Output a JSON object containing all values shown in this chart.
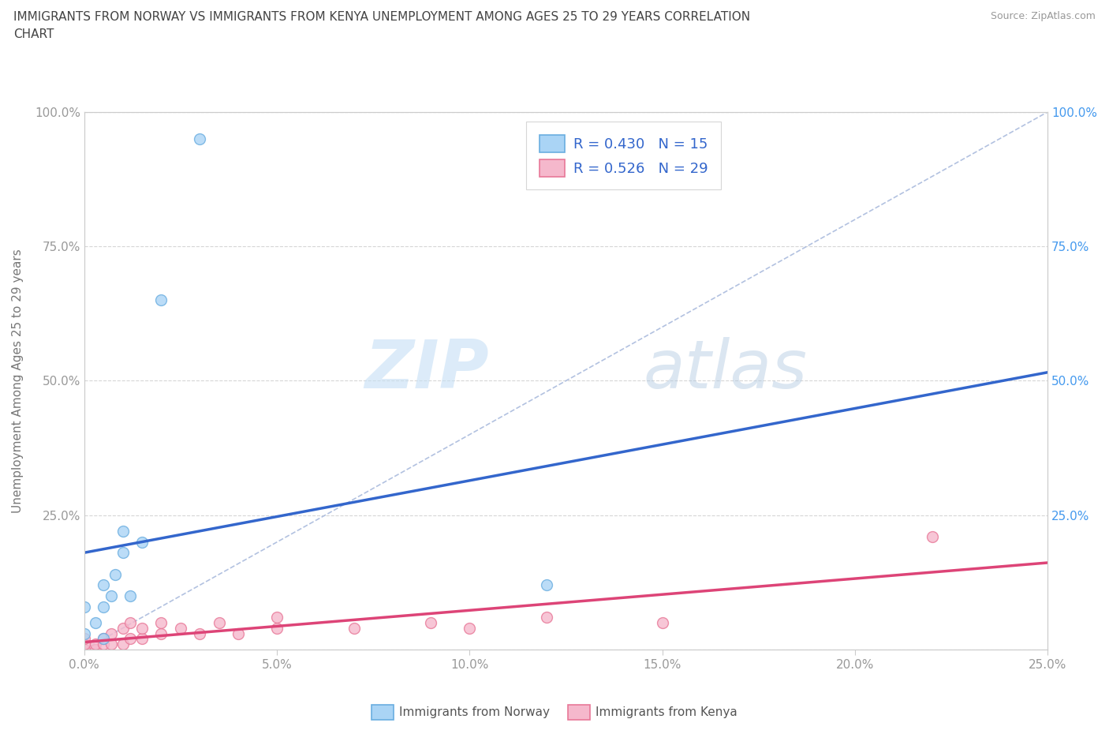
{
  "title": "IMMIGRANTS FROM NORWAY VS IMMIGRANTS FROM KENYA UNEMPLOYMENT AMONG AGES 25 TO 29 YEARS CORRELATION\nCHART",
  "source": "Source: ZipAtlas.com",
  "xlabel": "",
  "ylabel": "Unemployment Among Ages 25 to 29 years",
  "xlim": [
    0,
    0.25
  ],
  "ylim": [
    0,
    1.0
  ],
  "xticks": [
    0.0,
    0.05,
    0.1,
    0.15,
    0.2,
    0.25
  ],
  "yticks": [
    0,
    0.25,
    0.5,
    0.75,
    1.0
  ],
  "xticklabels": [
    "0.0%",
    "5.0%",
    "10.0%",
    "15.0%",
    "20.0%",
    "25.0%"
  ],
  "yticklabels": [
    "",
    "25.0%",
    "50.0%",
    "75.0%",
    "100.0%"
  ],
  "norway_color": "#aad4f5",
  "norway_edge_color": "#6aaee0",
  "kenya_color": "#f5b8cc",
  "kenya_edge_color": "#e87898",
  "norway_line_color": "#3366cc",
  "kenya_line_color": "#dd4477",
  "ref_line_color": "#aabbdd",
  "norway_R": 0.43,
  "norway_N": 15,
  "kenya_R": 0.526,
  "kenya_N": 29,
  "legend_R_N_color": "#3366cc",
  "watermark_zip": "ZIP",
  "watermark_atlas": "atlas",
  "norway_x": [
    0.005,
    0.0,
    0.0,
    0.003,
    0.005,
    0.005,
    0.007,
    0.008,
    0.01,
    0.01,
    0.012,
    0.015,
    0.02,
    0.03,
    0.12
  ],
  "norway_y": [
    0.02,
    0.03,
    0.08,
    0.05,
    0.08,
    0.12,
    0.1,
    0.14,
    0.18,
    0.22,
    0.1,
    0.2,
    0.65,
    0.95,
    0.12
  ],
  "kenya_x": [
    0.0,
    0.0,
    0.0,
    0.003,
    0.003,
    0.005,
    0.005,
    0.007,
    0.007,
    0.01,
    0.01,
    0.012,
    0.012,
    0.015,
    0.015,
    0.02,
    0.02,
    0.025,
    0.03,
    0.035,
    0.04,
    0.05,
    0.05,
    0.07,
    0.09,
    0.1,
    0.12,
    0.15,
    0.22
  ],
  "kenya_y": [
    0.0,
    0.01,
    0.02,
    0.0,
    0.01,
    0.01,
    0.02,
    0.01,
    0.03,
    0.01,
    0.04,
    0.02,
    0.05,
    0.02,
    0.04,
    0.03,
    0.05,
    0.04,
    0.03,
    0.05,
    0.03,
    0.04,
    0.06,
    0.04,
    0.05,
    0.04,
    0.06,
    0.05,
    0.21
  ],
  "background_color": "#ffffff",
  "grid_color": "#cccccc",
  "tick_color": "#999999",
  "axis_color": "#cccccc",
  "right_ytick_color": "#4499ee",
  "marker_size": 100
}
